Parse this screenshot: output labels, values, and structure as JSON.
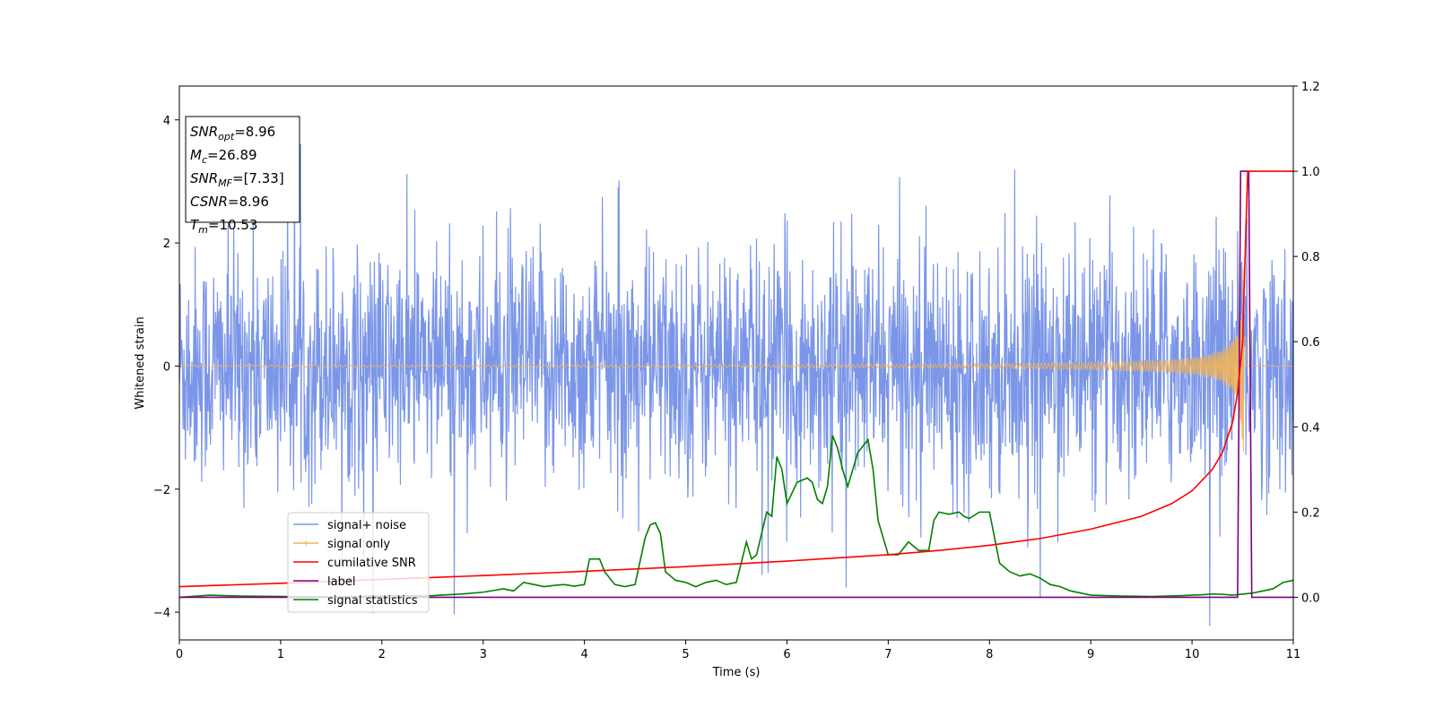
{
  "chart_data": {
    "type": "line",
    "xlabel": "Time (s)",
    "ylabel_left": "Whitened strain",
    "ylabel_right": "",
    "xlim": [
      0,
      11
    ],
    "ylim_left": [
      -4.45,
      4.55
    ],
    "ylim_right": [
      -0.1,
      1.2
    ],
    "x_ticks": [
      0,
      1,
      2,
      3,
      4,
      5,
      6,
      7,
      8,
      9,
      10,
      11
    ],
    "y_ticks_left": [
      -4,
      -2,
      0,
      2,
      4
    ],
    "y_ticks_right": [
      0.0,
      0.2,
      0.4,
      0.6,
      0.8,
      1.0,
      1.2
    ],
    "grid": false,
    "legend_position": "lower-left",
    "annotation_box": {
      "position": "top-left",
      "lines": [
        {
          "symbol": "SNR",
          "subscript": "opt",
          "value": "=8.96"
        },
        {
          "symbol": "M",
          "subscript": "c",
          "value": "=26.89"
        },
        {
          "symbol": "SNR",
          "subscript": "MF",
          "value": "=[7.33]"
        },
        {
          "symbol": "CSNR",
          "subscript": "",
          "value": "=8.96"
        },
        {
          "symbol": "T",
          "subscript": "m",
          "value": "=10.53"
        }
      ]
    },
    "series": [
      {
        "name": "signal+ noise",
        "axis": "left",
        "color": "#7b96e8",
        "description_values": {
          "typical_envelope": [
            -1.6,
            1.6
          ],
          "peak_max": 4.15,
          "peak_min": -4.05
        }
      },
      {
        "name": "signal only",
        "axis": "left",
        "color": "#f0b25a",
        "description_values": {
          "chirp_start_amplitude": 0.003,
          "chirp_end_time": 10.53,
          "chirp_peak_amplitude": 1.6
        }
      },
      {
        "name": "cumilative SNR",
        "axis": "right",
        "color": "#ff0000",
        "x": [
          0,
          1,
          2,
          3,
          4,
          5,
          6,
          7,
          7.5,
          8,
          8.5,
          9,
          9.5,
          9.8,
          10.0,
          10.2,
          10.3,
          10.4,
          10.45,
          10.5,
          10.53,
          10.55,
          11
        ],
        "values": [
          0.025,
          0.033,
          0.042,
          0.051,
          0.061,
          0.072,
          0.085,
          0.1,
          0.11,
          0.122,
          0.138,
          0.16,
          0.19,
          0.22,
          0.25,
          0.3,
          0.34,
          0.41,
          0.48,
          0.6,
          0.85,
          1.0,
          1.0
        ]
      },
      {
        "name": "label",
        "axis": "right",
        "color": "#800080",
        "x": [
          0,
          10.45,
          10.48,
          10.56,
          10.59,
          11
        ],
        "values": [
          0,
          0,
          1,
          1,
          0,
          0
        ]
      },
      {
        "name": "signal statistics",
        "axis": "right",
        "color": "#008000",
        "x": [
          0,
          0.3,
          0.6,
          1.0,
          1.5,
          2.0,
          2.5,
          2.8,
          3.0,
          3.2,
          3.3,
          3.4,
          3.5,
          3.6,
          3.7,
          3.8,
          3.9,
          4.0,
          4.05,
          4.15,
          4.2,
          4.3,
          4.4,
          4.5,
          4.6,
          4.65,
          4.7,
          4.75,
          4.8,
          4.9,
          5.0,
          5.1,
          5.2,
          5.3,
          5.4,
          5.5,
          5.6,
          5.65,
          5.7,
          5.8,
          5.85,
          5.9,
          5.95,
          6.0,
          6.1,
          6.2,
          6.25,
          6.3,
          6.35,
          6.4,
          6.45,
          6.5,
          6.55,
          6.6,
          6.7,
          6.8,
          6.85,
          6.9,
          7.0,
          7.1,
          7.2,
          7.25,
          7.3,
          7.4,
          7.45,
          7.5,
          7.6,
          7.7,
          7.75,
          7.8,
          7.9,
          8.0,
          8.1,
          8.2,
          8.3,
          8.4,
          8.5,
          8.6,
          8.7,
          8.8,
          9.0,
          9.3,
          9.6,
          9.9,
          10.1,
          10.2,
          10.3,
          10.4,
          10.6,
          10.8,
          10.9,
          11.0
        ],
        "values": [
          0.0,
          0.005,
          0.003,
          0.002,
          0.001,
          0.003,
          0.004,
          0.008,
          0.012,
          0.02,
          0.015,
          0.035,
          0.03,
          0.025,
          0.028,
          0.03,
          0.026,
          0.03,
          0.09,
          0.09,
          0.06,
          0.03,
          0.025,
          0.03,
          0.14,
          0.17,
          0.175,
          0.15,
          0.06,
          0.04,
          0.035,
          0.025,
          0.035,
          0.04,
          0.03,
          0.035,
          0.13,
          0.09,
          0.1,
          0.2,
          0.19,
          0.33,
          0.3,
          0.22,
          0.27,
          0.28,
          0.27,
          0.23,
          0.22,
          0.26,
          0.38,
          0.35,
          0.3,
          0.26,
          0.34,
          0.37,
          0.3,
          0.18,
          0.1,
          0.1,
          0.13,
          0.12,
          0.11,
          0.11,
          0.18,
          0.2,
          0.195,
          0.2,
          0.19,
          0.185,
          0.2,
          0.2,
          0.08,
          0.06,
          0.05,
          0.055,
          0.045,
          0.03,
          0.025,
          0.015,
          0.005,
          0.003,
          0.002,
          0.004,
          0.006,
          0.008,
          0.007,
          0.005,
          0.01,
          0.02,
          0.035,
          0.04
        ]
      }
    ]
  }
}
